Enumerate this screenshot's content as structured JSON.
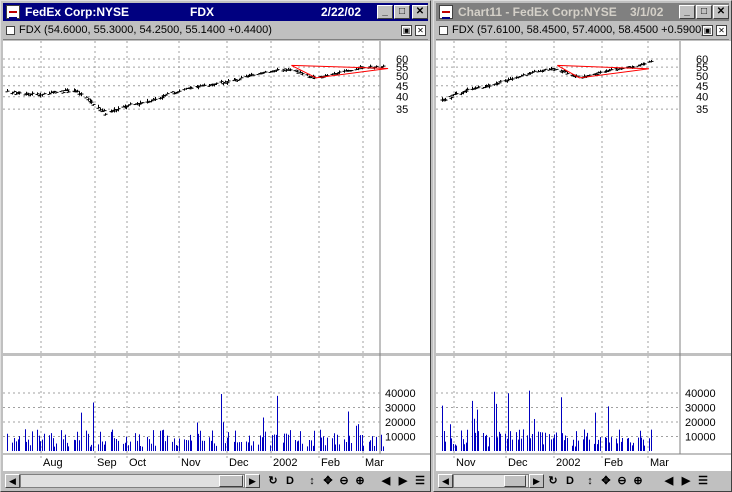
{
  "windows": [
    {
      "title_left": "FedEx Corp:NYSE",
      "title_mid": "FDX",
      "title_right": "2/22/02",
      "info": "FDX (54.6000, 55.3000, 54.2500, 55.1400 +0.4400)",
      "chart_data": {
        "type": "line",
        "title": "FDX",
        "price_axis_ticks": [
          35,
          40,
          45,
          50,
          55,
          60
        ],
        "volume_axis_ticks": [
          10000,
          20000,
          30000,
          40000
        ],
        "x_tick_labels": [
          "Aug",
          "Sep",
          "Oct",
          "Nov",
          "Dec",
          "2002",
          "Feb",
          "Mar"
        ],
        "closing_price_trace": [
          [
            "Jul 23",
            42
          ],
          [
            "Aug 10",
            41
          ],
          [
            "Aug 30",
            43
          ],
          [
            "Sep 5",
            40
          ],
          [
            "Sep 17",
            33.5
          ],
          [
            "Sep 28",
            36
          ],
          [
            "Oct 15",
            39
          ],
          [
            "Oct 30",
            43
          ],
          [
            "Nov 15",
            45.5
          ],
          [
            "Dec 1",
            48
          ],
          [
            "Dec 15",
            52
          ],
          [
            "Jan 1",
            54
          ],
          [
            "Jan 8",
            51
          ],
          [
            "Jan 15",
            49
          ],
          [
            "Jan 30",
            52
          ],
          [
            "Feb 10",
            55
          ],
          [
            "Feb 22",
            55.1
          ]
        ],
        "triangle_pattern": {
          "vertices": [
            [
              "Jan 1",
              56
            ],
            [
              "Feb 25",
              54.2
            ],
            [
              "Jan 15",
              49
            ]
          ],
          "color": "#ff0000"
        },
        "bar_color": "#000000",
        "volume_color": "#0000c0"
      }
    },
    {
      "title_left": "Chart11 - FedEx Corp:NYSE",
      "title_right": "3/1/02",
      "info": "FDX (57.6100, 58.4500, 57.4000, 58.4500 +0.5900)",
      "chart_data": {
        "type": "line",
        "title": "FDX",
        "price_axis_ticks": [
          35,
          40,
          45,
          50,
          55,
          60
        ],
        "volume_axis_ticks": [
          10000,
          20000,
          30000,
          40000
        ],
        "x_tick_labels": [
          "Nov",
          "Dec",
          "2002",
          "Feb",
          "Mar"
        ],
        "closing_price_trace": [
          [
            "Oct 20",
            38.5
          ],
          [
            "Nov 5",
            43
          ],
          [
            "Nov 20",
            45.5
          ],
          [
            "Dec 5",
            49
          ],
          [
            "Dec 20",
            53
          ],
          [
            "Jan 1",
            54
          ],
          [
            "Jan 15",
            49
          ],
          [
            "Jan 30",
            52
          ],
          [
            "Feb 10",
            54.5
          ],
          [
            "Feb 22",
            56
          ],
          [
            "Mar 1",
            58.5
          ]
        ],
        "triangle_pattern": {
          "vertices": [
            [
              "Jan 1",
              56
            ],
            [
              "Feb 28",
              54
            ],
            [
              "Jan 15",
              49
            ]
          ],
          "color": "#ff0000"
        },
        "bar_color": "#000000",
        "volume_color": "#0000c0"
      }
    }
  ]
}
